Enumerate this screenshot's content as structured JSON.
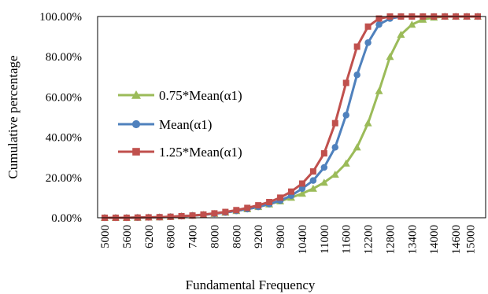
{
  "chart_data": {
    "type": "line",
    "title": "",
    "xlabel": "Fundamental Frequency",
    "ylabel": "Cumulative percentage",
    "x": [
      5000,
      5300,
      5600,
      5900,
      6200,
      6500,
      6800,
      7100,
      7400,
      7700,
      8000,
      8300,
      8600,
      8900,
      9200,
      9500,
      9800,
      10100,
      10400,
      10700,
      11000,
      11300,
      11600,
      11900,
      12200,
      12500,
      12800,
      13100,
      13400,
      13700,
      14000,
      14300,
      14600,
      14900,
      15200
    ],
    "x_tick_labels": [
      "5000",
      "5600",
      "6200",
      "6800",
      "7400",
      "8000",
      "8600",
      "9200",
      "9800",
      "10400",
      "11000",
      "11600",
      "12200",
      "12800",
      "13400",
      "14000",
      "14600",
      "15000"
    ],
    "y_tick_labels": [
      "0.00%",
      "20.00%",
      "40.00%",
      "60.00%",
      "80.00%",
      "100.00%"
    ],
    "ylim": [
      0,
      100
    ],
    "grid": false,
    "legend_position": "center-left",
    "series": [
      {
        "name": "0.75*Mean(α1)",
        "color": "#9BBB59",
        "marker": "triangle",
        "values": [
          0,
          0,
          0,
          0.1,
          0.2,
          0.3,
          0.5,
          0.8,
          1.1,
          1.5,
          2,
          2.6,
          3.4,
          4.3,
          5.4,
          6.7,
          8.2,
          10,
          12,
          14.5,
          17.5,
          21.5,
          27,
          35,
          47,
          63,
          80,
          91,
          96,
          98.5,
          99.5,
          100,
          100,
          100,
          100
        ]
      },
      {
        "name": "Mean(α1)",
        "color": "#4F81BD",
        "marker": "circle",
        "values": [
          0,
          0,
          0,
          0.1,
          0.2,
          0.3,
          0.5,
          0.8,
          1.1,
          1.5,
          2,
          2.6,
          3.4,
          4.3,
          5.4,
          6.8,
          8.5,
          11,
          14.5,
          18.5,
          25,
          35,
          51,
          71,
          87,
          96,
          99,
          100,
          100,
          100,
          100,
          100,
          100,
          100,
          100
        ]
      },
      {
        "name": "1.25*Mean(α1)",
        "color": "#C0504D",
        "marker": "square",
        "values": [
          0,
          0,
          0,
          0.1,
          0.2,
          0.3,
          0.5,
          0.8,
          1.1,
          1.6,
          2.2,
          2.9,
          3.8,
          4.9,
          6.2,
          7.8,
          10,
          13,
          17,
          23,
          32,
          47,
          67,
          85,
          95,
          99,
          100,
          100,
          100,
          100,
          100,
          100,
          100,
          100,
          100
        ]
      }
    ]
  }
}
